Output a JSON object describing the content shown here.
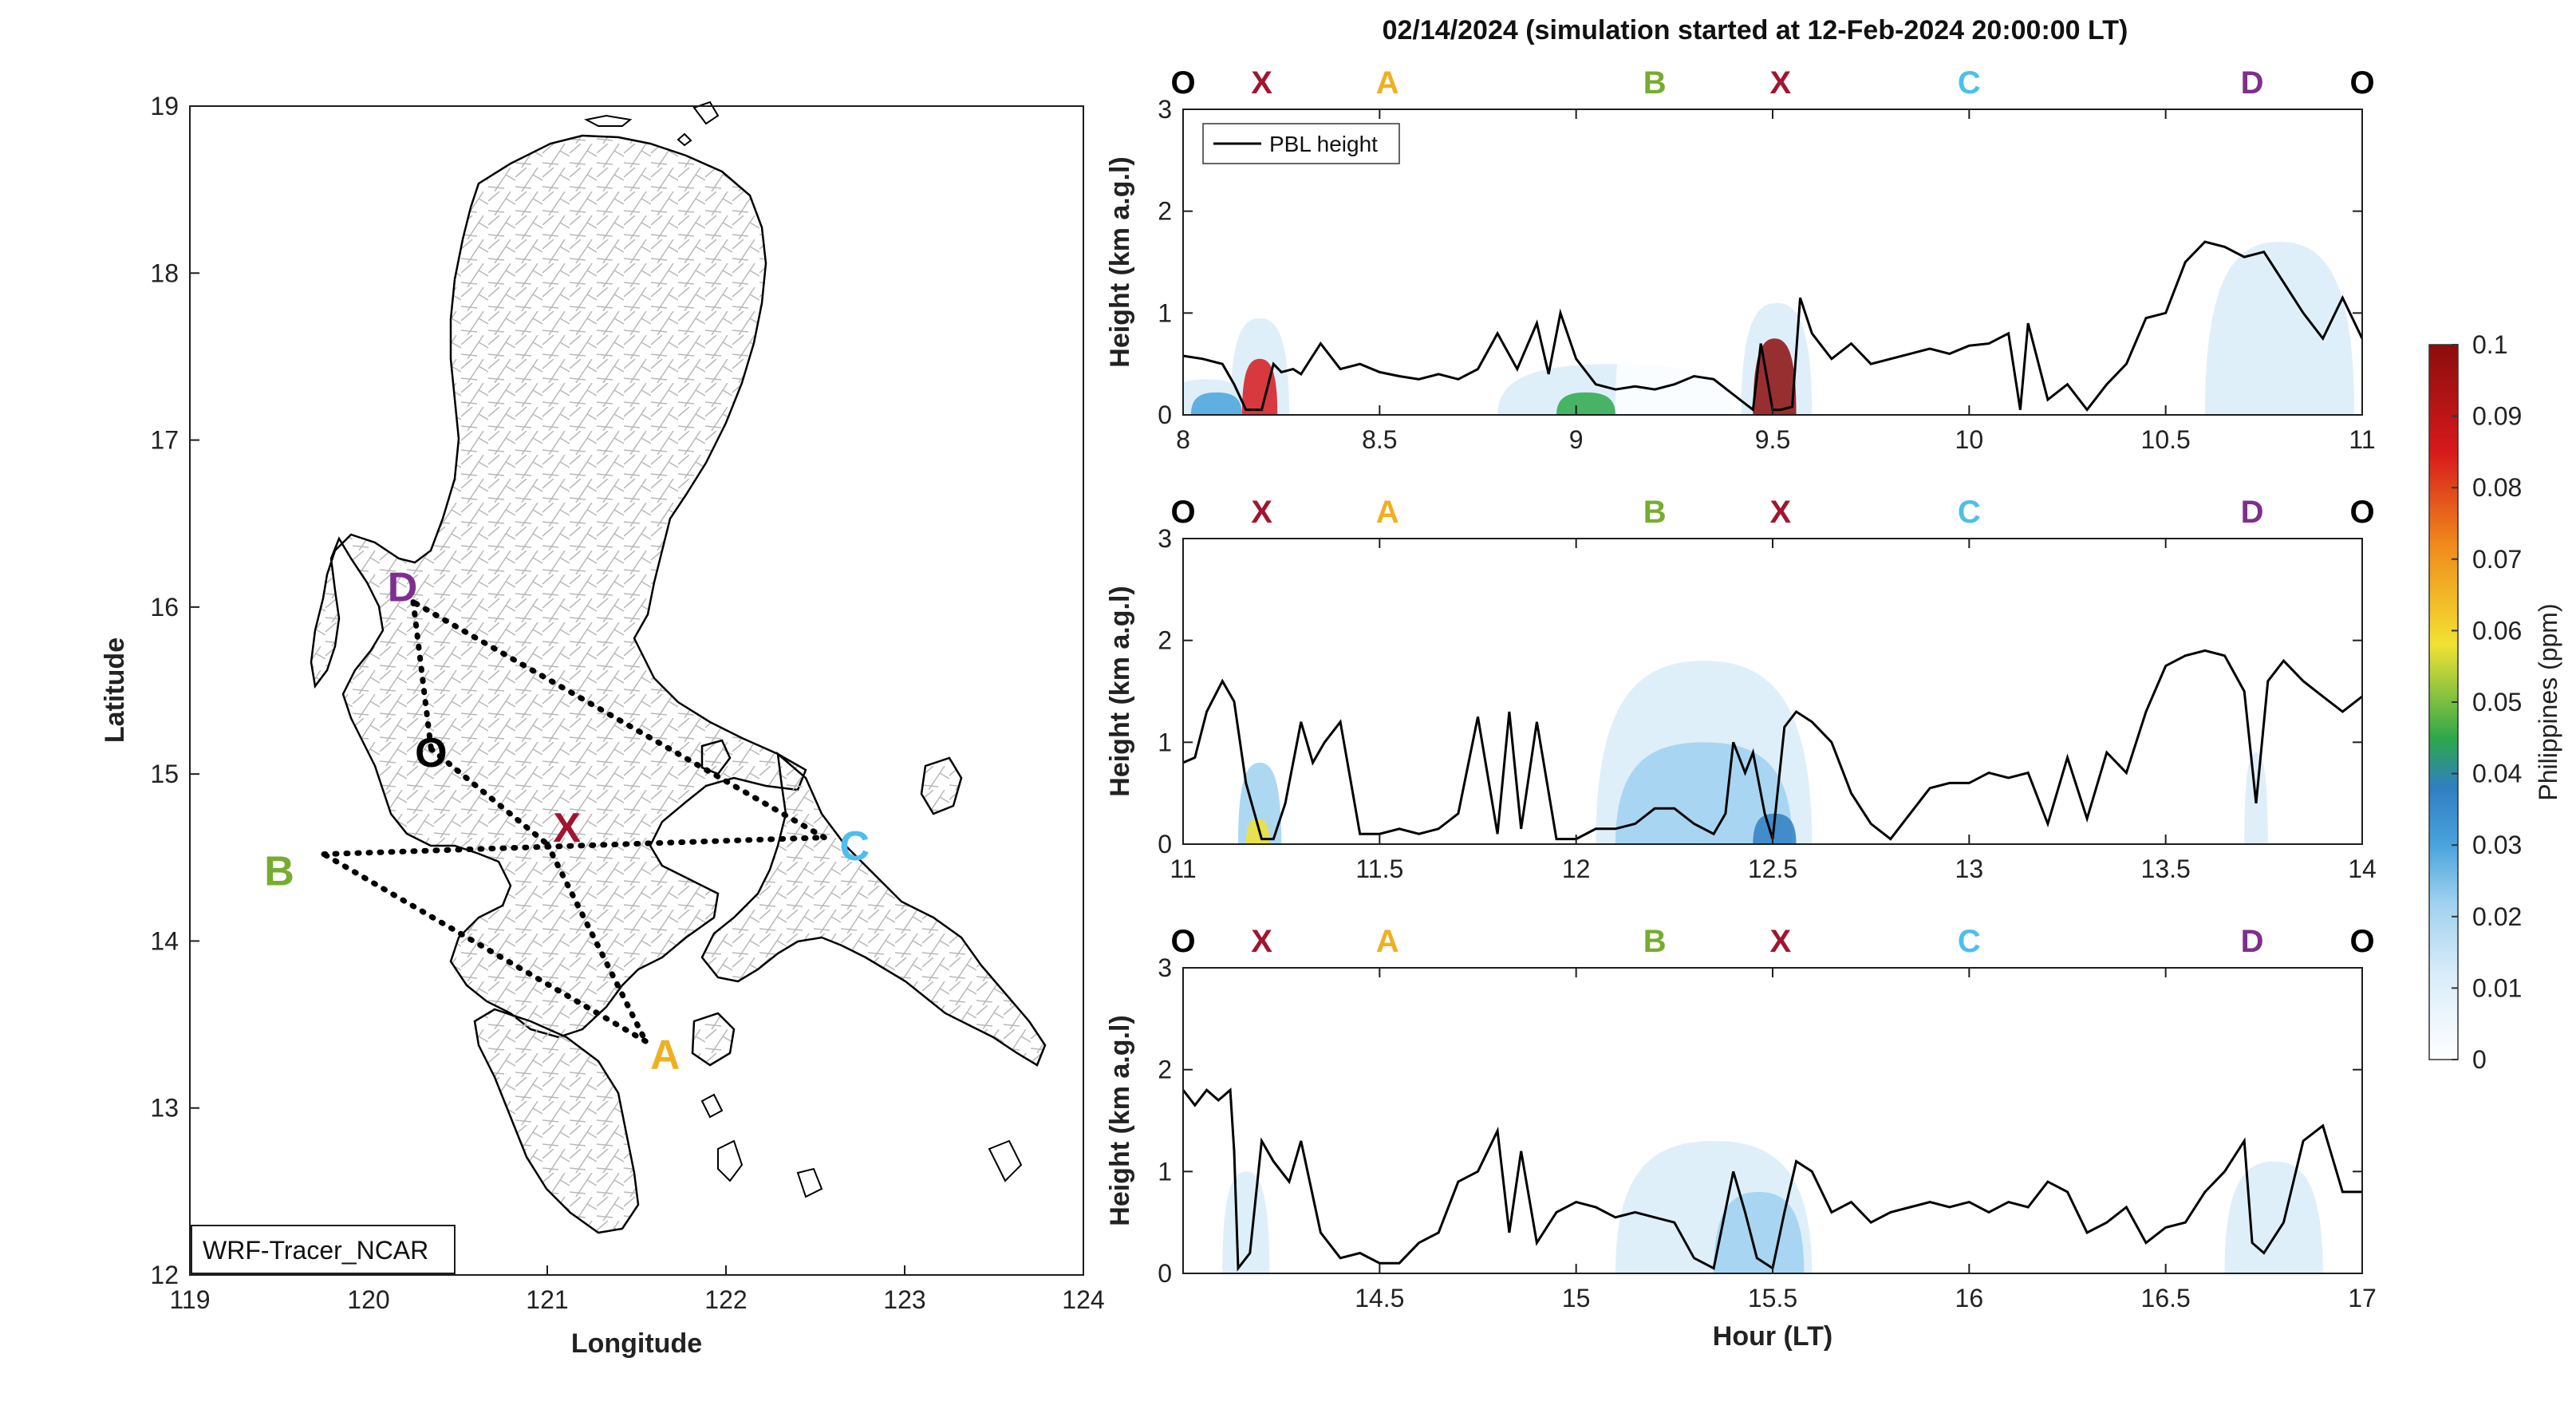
{
  "figure_title": "02/14/2024 (simulation started at 12-Feb-2024 20:00:00 LT)",
  "colors": {
    "O": "#000000",
    "X": "#a2142f",
    "A": "#edb120",
    "B": "#77ac30",
    "C": "#4dbeee",
    "D": "#7e2f8e",
    "pbl_line": "#000000",
    "colormap": [
      "#ffffff",
      "#d9ecf9",
      "#9fd1f0",
      "#4aa3dc",
      "#2f7fc2",
      "#2ea84a",
      "#f2e233",
      "#f08a1c",
      "#d7191c",
      "#8b0d0d"
    ]
  },
  "waypoint_sequence": [
    "O",
    "X",
    "A",
    "B",
    "X",
    "C",
    "D",
    "O"
  ],
  "chart_data": [
    {
      "type": "map",
      "name": "flight-track-map",
      "xlabel": "Longitude",
      "ylabel": "Latitude",
      "xlim": [
        119,
        124
      ],
      "ylim": [
        12,
        19
      ],
      "xticks": [
        119,
        120,
        121,
        122,
        123,
        124
      ],
      "yticks": [
        12,
        13,
        14,
        15,
        16,
        17,
        18,
        19
      ],
      "inset_label": "WRF-Tracer_NCAR",
      "waypoints": [
        {
          "name": "O",
          "lon": 120.35,
          "lat": 15.15
        },
        {
          "name": "X",
          "lon": 121.0,
          "lat": 14.58
        },
        {
          "name": "A",
          "lon": 121.55,
          "lat": 13.4
        },
        {
          "name": "B",
          "lon": 119.75,
          "lat": 14.52
        },
        {
          "name": "C",
          "lon": 122.55,
          "lat": 14.62
        },
        {
          "name": "D",
          "lon": 120.25,
          "lat": 16.03
        }
      ],
      "label_positions": [
        {
          "name": "O",
          "lon": 120.35,
          "lat": 15.13
        },
        {
          "name": "X",
          "lon": 121.11,
          "lat": 14.68
        },
        {
          "name": "A",
          "lon": 121.66,
          "lat": 13.32
        },
        {
          "name": "B",
          "lon": 119.5,
          "lat": 14.42
        },
        {
          "name": "C",
          "lon": 122.72,
          "lat": 14.57
        },
        {
          "name": "D",
          "lon": 120.19,
          "lat": 16.12
        }
      ],
      "track": [
        "D",
        "O",
        "X",
        "A",
        "B",
        "C",
        "D"
      ]
    },
    {
      "type": "heatmap",
      "name": "curtain-panel-1",
      "xlim": [
        8,
        11
      ],
      "ylim": [
        0,
        3
      ],
      "xticks": [
        8,
        8.5,
        9,
        9.5,
        10,
        10.5,
        11
      ],
      "xtick_labels": [
        "8",
        "8.5",
        "9",
        "9.5",
        "10",
        "10.5",
        "11"
      ],
      "yticks": [
        0,
        1,
        2,
        3
      ],
      "ylabel": "Height (km a.g.l)",
      "xlabel": "",
      "legend": "PBL height",
      "waypoint_times": [
        8.0,
        8.2,
        8.52,
        9.2,
        9.52,
        10.0,
        10.72,
        11.0
      ],
      "pbl": {
        "x": [
          8.0,
          8.05,
          8.1,
          8.13,
          8.16,
          8.18,
          8.2,
          8.23,
          8.25,
          8.28,
          8.3,
          8.35,
          8.4,
          8.45,
          8.5,
          8.55,
          8.6,
          8.65,
          8.7,
          8.75,
          8.8,
          8.85,
          8.9,
          8.93,
          8.96,
          9.0,
          9.05,
          9.1,
          9.15,
          9.2,
          9.25,
          9.3,
          9.35,
          9.4,
          9.45,
          9.47,
          9.5,
          9.52,
          9.55,
          9.57,
          9.6,
          9.65,
          9.7,
          9.75,
          9.8,
          9.85,
          9.9,
          9.95,
          10.0,
          10.05,
          10.1,
          10.13,
          10.15,
          10.2,
          10.25,
          10.3,
          10.35,
          10.4,
          10.45,
          10.5,
          10.55,
          10.6,
          10.65,
          10.7,
          10.75,
          10.8,
          10.85,
          10.9,
          10.95,
          11.0
        ],
        "y": [
          0.58,
          0.55,
          0.5,
          0.3,
          0.05,
          0.05,
          0.05,
          0.5,
          0.42,
          0.45,
          0.4,
          0.7,
          0.45,
          0.5,
          0.42,
          0.38,
          0.35,
          0.4,
          0.35,
          0.45,
          0.8,
          0.45,
          0.9,
          0.4,
          1.0,
          0.55,
          0.3,
          0.25,
          0.28,
          0.25,
          0.3,
          0.38,
          0.35,
          0.2,
          0.05,
          0.7,
          0.05,
          0.05,
          0.08,
          1.15,
          0.8,
          0.55,
          0.7,
          0.5,
          0.55,
          0.6,
          0.65,
          0.6,
          0.68,
          0.7,
          0.8,
          0.05,
          0.9,
          0.15,
          0.3,
          0.05,
          0.3,
          0.5,
          0.95,
          1.0,
          1.5,
          1.7,
          1.65,
          1.55,
          1.6,
          1.3,
          1.0,
          0.75,
          1.15,
          0.75
        ]
      },
      "plumes": [
        {
          "x": 8.0,
          "x0": 7.95,
          "x1": 8.17,
          "y0": 0,
          "y1": 0.35,
          "c": 0.022
        },
        {
          "x": 8.2,
          "x0": 8.12,
          "x1": 8.27,
          "y0": 0,
          "y1": 0.95,
          "c": 0.02
        },
        {
          "x": 8.2,
          "x0": 8.15,
          "x1": 8.24,
          "y0": 0,
          "y1": 0.55,
          "c": 0.09
        },
        {
          "x": 8.05,
          "x0": 8.02,
          "x1": 8.15,
          "y0": 0,
          "y1": 0.22,
          "c": 0.038
        },
        {
          "x": 8.9,
          "x0": 8.8,
          "x1": 9.4,
          "y0": 0,
          "y1": 0.5,
          "c": 0.012
        },
        {
          "x": 9.0,
          "x0": 8.95,
          "x1": 9.1,
          "y0": 0,
          "y1": 0.22,
          "c": 0.052
        },
        {
          "x": 9.2,
          "x0": 9.1,
          "x1": 9.42,
          "y0": 0,
          "y1": 1.6,
          "c": 0.006
        },
        {
          "x": 9.5,
          "x0": 9.42,
          "x1": 9.6,
          "y0": 0,
          "y1": 1.1,
          "c": 0.022
        },
        {
          "x": 9.5,
          "x0": 9.45,
          "x1": 9.56,
          "y0": 0,
          "y1": 0.75,
          "c": 0.1
        },
        {
          "x": 10.7,
          "x0": 10.6,
          "x1": 10.98,
          "y0": 0,
          "y1": 1.7,
          "c": 0.012
        },
        {
          "x": 10.5,
          "x0": 10.45,
          "x1": 10.6,
          "y0": 0,
          "y1": 0.8,
          "c": 0.005
        }
      ]
    },
    {
      "type": "heatmap",
      "name": "curtain-panel-2",
      "xlim": [
        11,
        14
      ],
      "ylim": [
        0,
        3
      ],
      "xticks": [
        11,
        11.5,
        12,
        12.5,
        13,
        13.5,
        14
      ],
      "xtick_labels": [
        "11",
        "11.5",
        "12",
        "12.5",
        "13",
        "13.5",
        "14"
      ],
      "yticks": [
        0,
        1,
        2,
        3
      ],
      "ylabel": "Height (km a.g.l)",
      "xlabel": "",
      "waypoint_times": [
        11.0,
        11.2,
        11.52,
        12.2,
        12.52,
        13.0,
        13.72,
        14.0
      ],
      "pbl": {
        "x": [
          11.0,
          11.03,
          11.06,
          11.1,
          11.13,
          11.16,
          11.2,
          11.23,
          11.26,
          11.3,
          11.33,
          11.36,
          11.4,
          11.45,
          11.5,
          11.55,
          11.6,
          11.65,
          11.7,
          11.75,
          11.8,
          11.83,
          11.86,
          11.9,
          11.95,
          12.0,
          12.05,
          12.1,
          12.15,
          12.2,
          12.25,
          12.3,
          12.35,
          12.38,
          12.4,
          12.43,
          12.45,
          12.48,
          12.5,
          12.53,
          12.56,
          12.6,
          12.65,
          12.7,
          12.75,
          12.8,
          12.85,
          12.9,
          12.95,
          13.0,
          13.05,
          13.1,
          13.15,
          13.2,
          13.25,
          13.3,
          13.35,
          13.4,
          13.45,
          13.5,
          13.55,
          13.6,
          13.65,
          13.7,
          13.73,
          13.76,
          13.8,
          13.85,
          13.9,
          13.95,
          14.0
        ],
        "y": [
          0.8,
          0.85,
          1.3,
          1.6,
          1.4,
          0.6,
          0.05,
          0.05,
          0.4,
          1.2,
          0.8,
          1.0,
          1.2,
          0.1,
          0.1,
          0.15,
          0.1,
          0.15,
          0.3,
          1.25,
          0.1,
          1.3,
          0.15,
          1.2,
          0.05,
          0.05,
          0.15,
          0.15,
          0.2,
          0.35,
          0.35,
          0.2,
          0.1,
          0.3,
          1.0,
          0.7,
          0.9,
          0.3,
          0.05,
          1.15,
          1.3,
          1.2,
          1.0,
          0.5,
          0.2,
          0.05,
          0.3,
          0.55,
          0.6,
          0.6,
          0.7,
          0.65,
          0.7,
          0.2,
          0.85,
          0.25,
          0.9,
          0.7,
          1.3,
          1.75,
          1.85,
          1.9,
          1.85,
          1.5,
          0.4,
          1.6,
          1.8,
          1.6,
          1.45,
          1.3,
          1.45
        ]
      },
      "plumes": [
        {
          "x": 11.2,
          "x0": 11.1,
          "x1": 11.3,
          "y0": 0,
          "y1": 1.8,
          "c": 0.01
        },
        {
          "x": 11.2,
          "x0": 11.14,
          "x1": 11.25,
          "y0": 0,
          "y1": 0.8,
          "c": 0.025
        },
        {
          "x": 11.2,
          "x0": 11.16,
          "x1": 11.22,
          "y0": 0,
          "y1": 0.25,
          "c": 0.06
        },
        {
          "x": 12.2,
          "x0": 11.9,
          "x1": 12.7,
          "y0": 0,
          "y1": 2.5,
          "c": 0.006
        },
        {
          "x": 12.2,
          "x0": 12.05,
          "x1": 12.6,
          "y0": 0,
          "y1": 1.8,
          "c": 0.018
        },
        {
          "x": 12.25,
          "x0": 12.1,
          "x1": 12.55,
          "y0": 0,
          "y1": 1.0,
          "c": 0.028
        },
        {
          "x": 12.5,
          "x0": 12.45,
          "x1": 12.56,
          "y0": 0,
          "y1": 0.3,
          "c": 0.04
        },
        {
          "x": 13.7,
          "x0": 13.55,
          "x1": 13.95,
          "y0": 0,
          "y1": 2.7,
          "c": 0.005
        },
        {
          "x": 13.73,
          "x0": 13.7,
          "x1": 13.76,
          "y0": 0,
          "y1": 0.9,
          "c": 0.016
        }
      ]
    },
    {
      "type": "heatmap",
      "name": "curtain-panel-3",
      "xlim": [
        14,
        17
      ],
      "ylim": [
        0,
        3
      ],
      "xticks": [
        14.5,
        15,
        15.5,
        16,
        16.5,
        17
      ],
      "xtick_labels": [
        "14.5",
        "15",
        "15.5",
        "16",
        "16.5",
        "17"
      ],
      "yticks": [
        0,
        1,
        2,
        3
      ],
      "ylabel": "Height (km a.g.l)",
      "xlabel": "Hour (LT)",
      "waypoint_times": [
        14.0,
        14.2,
        14.52,
        15.2,
        15.52,
        16.0,
        16.72,
        17.0
      ],
      "pbl": {
        "x": [
          14.0,
          14.03,
          14.06,
          14.09,
          14.12,
          14.13,
          14.14,
          14.17,
          14.2,
          14.23,
          14.27,
          14.3,
          14.35,
          14.4,
          14.45,
          14.5,
          14.55,
          14.6,
          14.65,
          14.7,
          14.75,
          14.8,
          14.83,
          14.86,
          14.9,
          14.95,
          15.0,
          15.05,
          15.1,
          15.15,
          15.2,
          15.25,
          15.3,
          15.35,
          15.4,
          15.43,
          15.46,
          15.5,
          15.53,
          15.56,
          15.6,
          15.65,
          15.7,
          15.75,
          15.8,
          15.85,
          15.9,
          15.95,
          16.0,
          16.05,
          16.1,
          16.15,
          16.2,
          16.25,
          16.3,
          16.35,
          16.4,
          16.45,
          16.5,
          16.55,
          16.6,
          16.65,
          16.7,
          16.72,
          16.75,
          16.8,
          16.85,
          16.9,
          16.95,
          17.0
        ],
        "y": [
          1.8,
          1.65,
          1.8,
          1.7,
          1.8,
          1.2,
          0.05,
          0.2,
          1.3,
          1.1,
          0.9,
          1.3,
          0.4,
          0.15,
          0.2,
          0.1,
          0.1,
          0.3,
          0.4,
          0.9,
          1.0,
          1.4,
          0.4,
          1.2,
          0.3,
          0.6,
          0.7,
          0.65,
          0.55,
          0.6,
          0.55,
          0.5,
          0.15,
          0.05,
          1.0,
          0.6,
          0.15,
          0.05,
          0.6,
          1.1,
          1.0,
          0.6,
          0.7,
          0.5,
          0.6,
          0.65,
          0.7,
          0.65,
          0.7,
          0.6,
          0.7,
          0.65,
          0.9,
          0.8,
          0.4,
          0.5,
          0.65,
          0.3,
          0.45,
          0.5,
          0.8,
          1.0,
          1.3,
          0.3,
          0.2,
          0.5,
          1.3,
          1.45,
          0.8,
          0.8
        ]
      },
      "plumes": [
        {
          "x": 14.15,
          "x0": 14.0,
          "x1": 14.35,
          "y0": 0,
          "y1": 2.3,
          "c": 0.006
        },
        {
          "x": 14.15,
          "x0": 14.1,
          "x1": 14.22,
          "y0": 0,
          "y1": 1.0,
          "c": 0.018
        },
        {
          "x": 15.2,
          "x0": 14.95,
          "x1": 15.65,
          "y0": 0,
          "y1": 2.6,
          "c": 0.007
        },
        {
          "x": 15.25,
          "x0": 15.1,
          "x1": 15.6,
          "y0": 0,
          "y1": 1.3,
          "c": 0.02
        },
        {
          "x": 15.45,
          "x0": 15.35,
          "x1": 15.58,
          "y0": 0,
          "y1": 0.8,
          "c": 0.026
        },
        {
          "x": 16.75,
          "x0": 16.55,
          "x1": 17.0,
          "y0": 0,
          "y1": 2.5,
          "c": 0.006
        },
        {
          "x": 16.75,
          "x0": 16.65,
          "x1": 16.9,
          "y0": 0,
          "y1": 1.1,
          "c": 0.012
        }
      ]
    }
  ],
  "colorbar": {
    "label": "Philippines (ppm)",
    "min": 0,
    "max": 0.1,
    "ticks": [
      "0",
      "0.01",
      "0.02",
      "0.03",
      "0.04",
      "0.05",
      "0.06",
      "0.07",
      "0.08",
      "0.09",
      "0.1"
    ]
  }
}
